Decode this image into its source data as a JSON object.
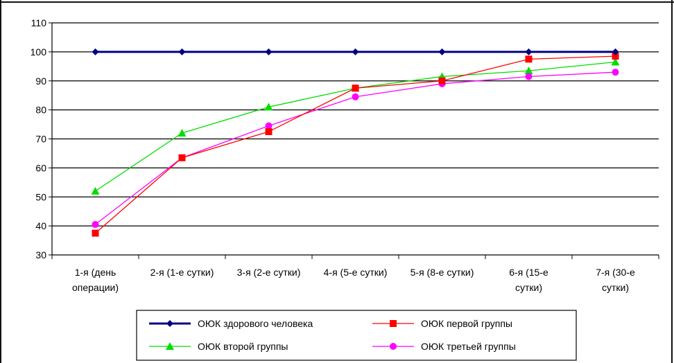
{
  "chart_data": {
    "type": "line",
    "title": "",
    "xlabel": "",
    "ylabel": "",
    "ylim": [
      30,
      110
    ],
    "yticks": [
      30,
      40,
      50,
      60,
      70,
      80,
      90,
      100,
      110
    ],
    "grid": true,
    "legend_placement": "bottom",
    "categories": [
      [
        "1-я (день",
        "операции)"
      ],
      [
        "2-я (1-е сутки)"
      ],
      [
        "3-я (2-е сутки)"
      ],
      [
        "4-я (5-е сутки)"
      ],
      [
        "5-я (8-е сутки)"
      ],
      [
        "6-я (15-е",
        "сутки)"
      ],
      [
        "7-я (30-е",
        "сутки)"
      ]
    ],
    "series": [
      {
        "name": "ОЮК здорового человека",
        "color": "#000080",
        "marker": "diamond",
        "values": [
          100,
          100,
          100,
          100,
          100,
          100,
          100
        ]
      },
      {
        "name": "ОЮК первой группы",
        "color": "#ff0000",
        "marker": "square",
        "values": [
          37.5,
          63.5,
          72.5,
          87.5,
          90,
          97.5,
          98.5
        ]
      },
      {
        "name": "ОЮК второй группы",
        "color": "#00dd00",
        "marker": "triangle",
        "values": [
          52,
          72,
          81,
          87.5,
          91.5,
          93.5,
          96.5
        ]
      },
      {
        "name": "ОЮК третьей группы",
        "color": "#ff00ff",
        "marker": "circle",
        "values": [
          40.5,
          63.5,
          74.5,
          84.5,
          89,
          91.5,
          93
        ]
      }
    ]
  }
}
